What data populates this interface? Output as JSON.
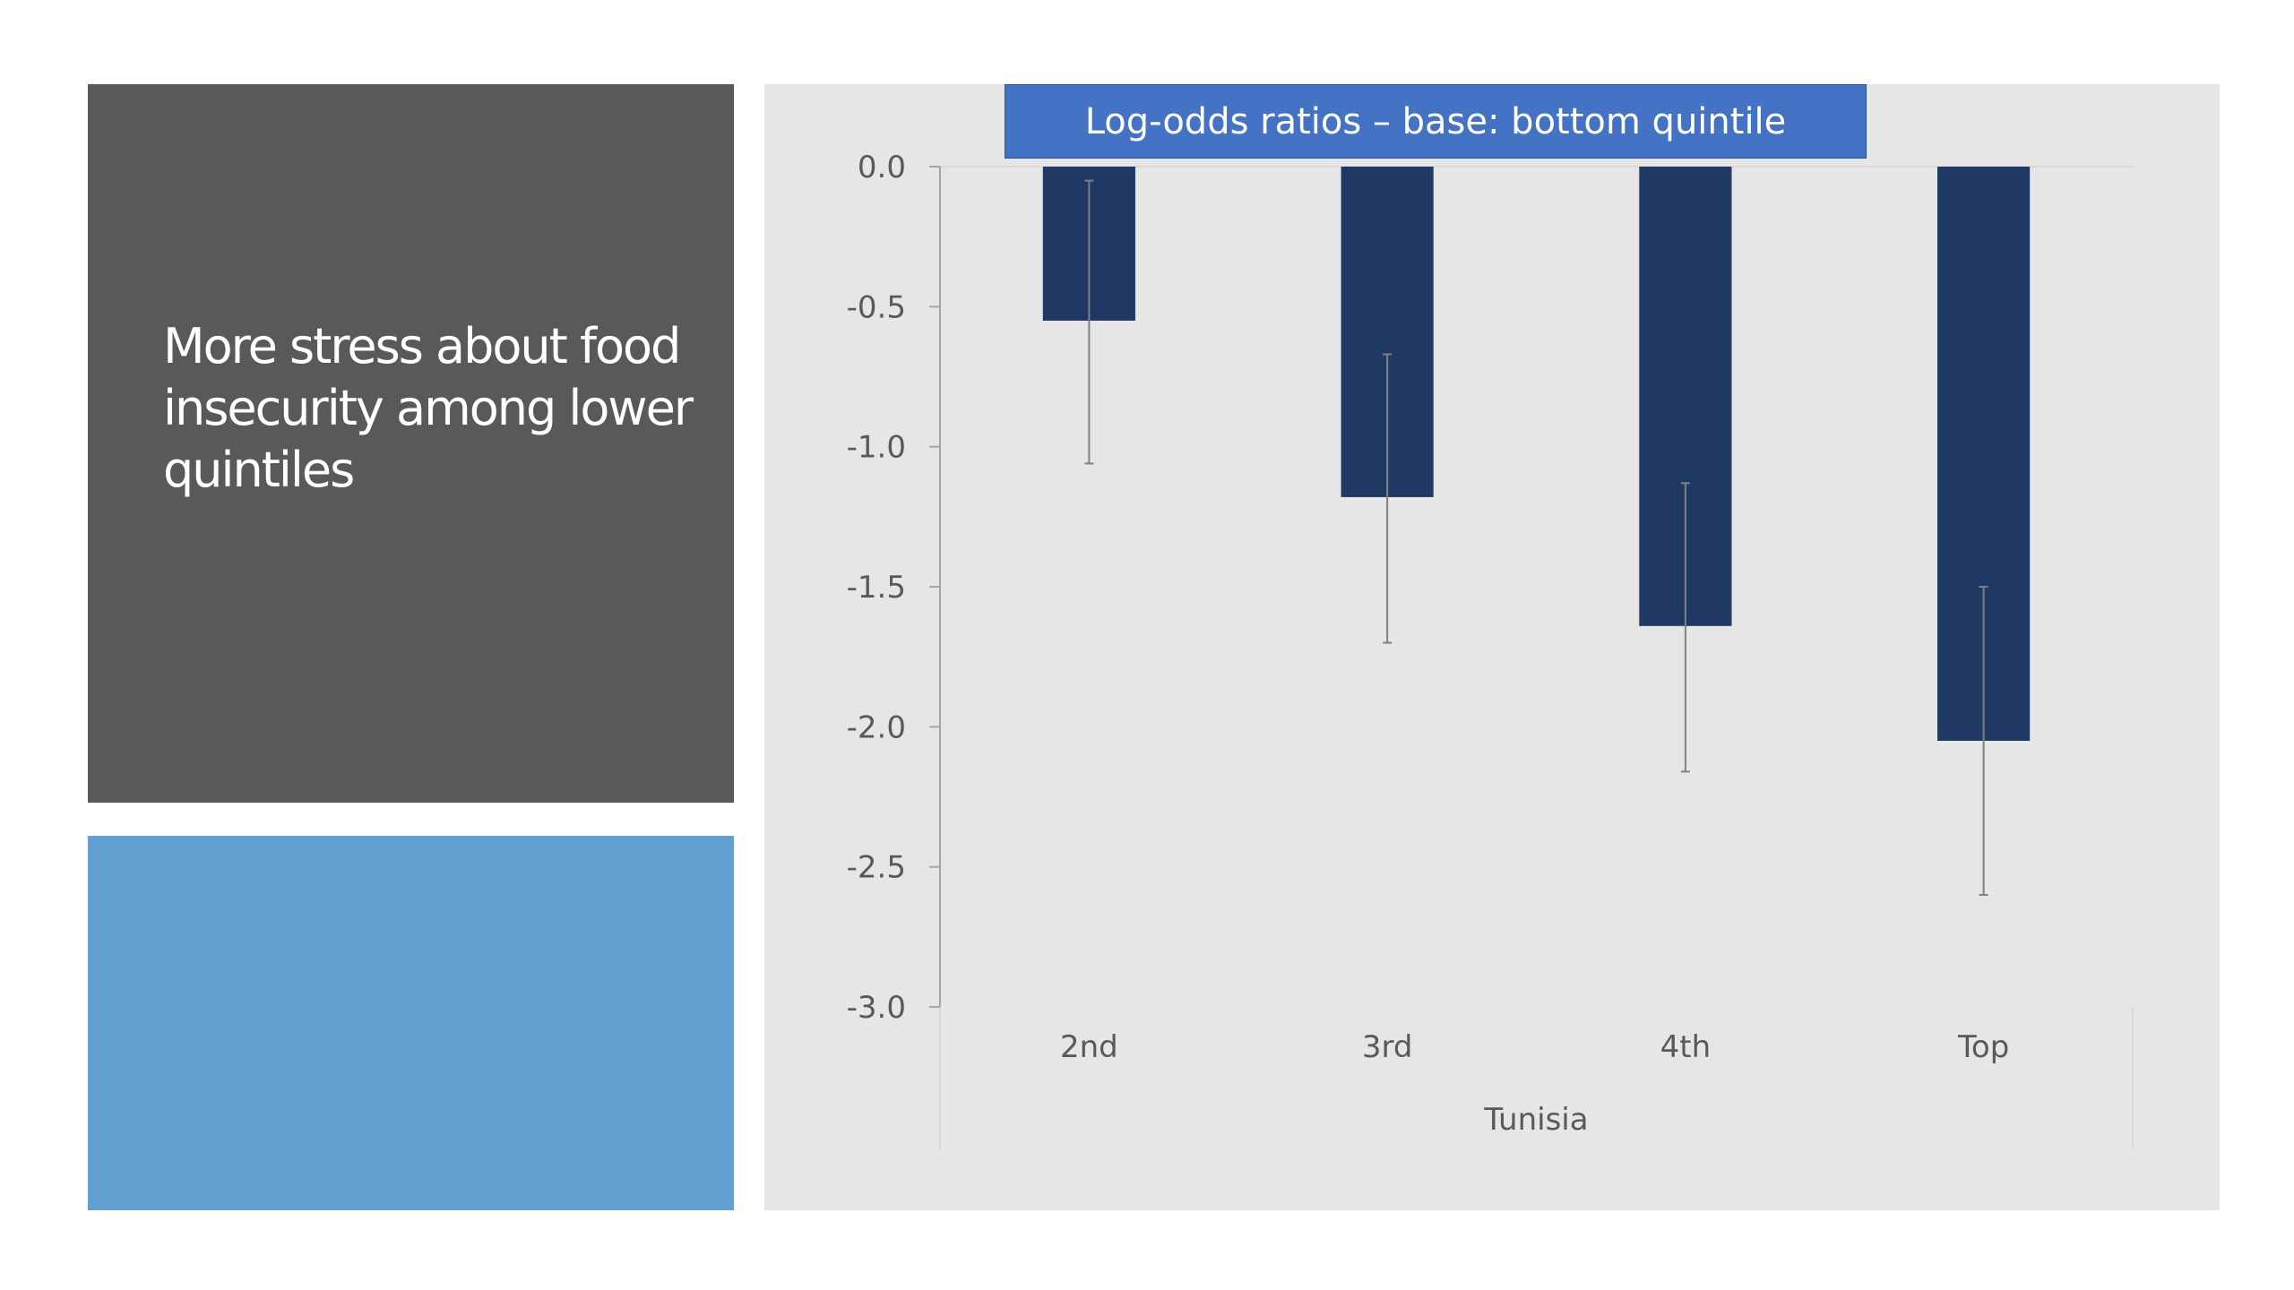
{
  "left_panel": {
    "title": "More stress about food insecurity among lower quintiles"
  },
  "colors": {
    "left_panel_bg": "#595959",
    "lower_panel_bg": "#629fd3",
    "chart_bg": "#e6e6e6",
    "title_box_bg": "#4472c4",
    "bar_color": "#1f3864",
    "error_bar_color": "#808080"
  },
  "chart_data": {
    "type": "bar",
    "title": "Log-odds ratios – base: bottom quintile",
    "categories": [
      "2nd",
      "3rd",
      "4th",
      "Top"
    ],
    "group_label": "Tunisia",
    "series": [
      {
        "values": [
          -0.55,
          -1.18,
          -1.64,
          -2.05
        ],
        "error_low": [
          -1.06,
          -1.7,
          -2.16,
          -2.6
        ],
        "error_high": [
          -0.05,
          -0.67,
          -1.13,
          -1.5
        ]
      }
    ],
    "ylim": [
      -3.0,
      0.0
    ],
    "yticks": [
      0.0,
      -0.5,
      -1.0,
      -1.5,
      -2.0,
      -2.5,
      -3.0
    ],
    "ytick_labels": [
      "0.0",
      "-0.5",
      "-1.0",
      "-1.5",
      "-2.0",
      "-2.5",
      "-3.0"
    ],
    "xlabel": "",
    "ylabel": "",
    "grid": false,
    "legend": false
  }
}
